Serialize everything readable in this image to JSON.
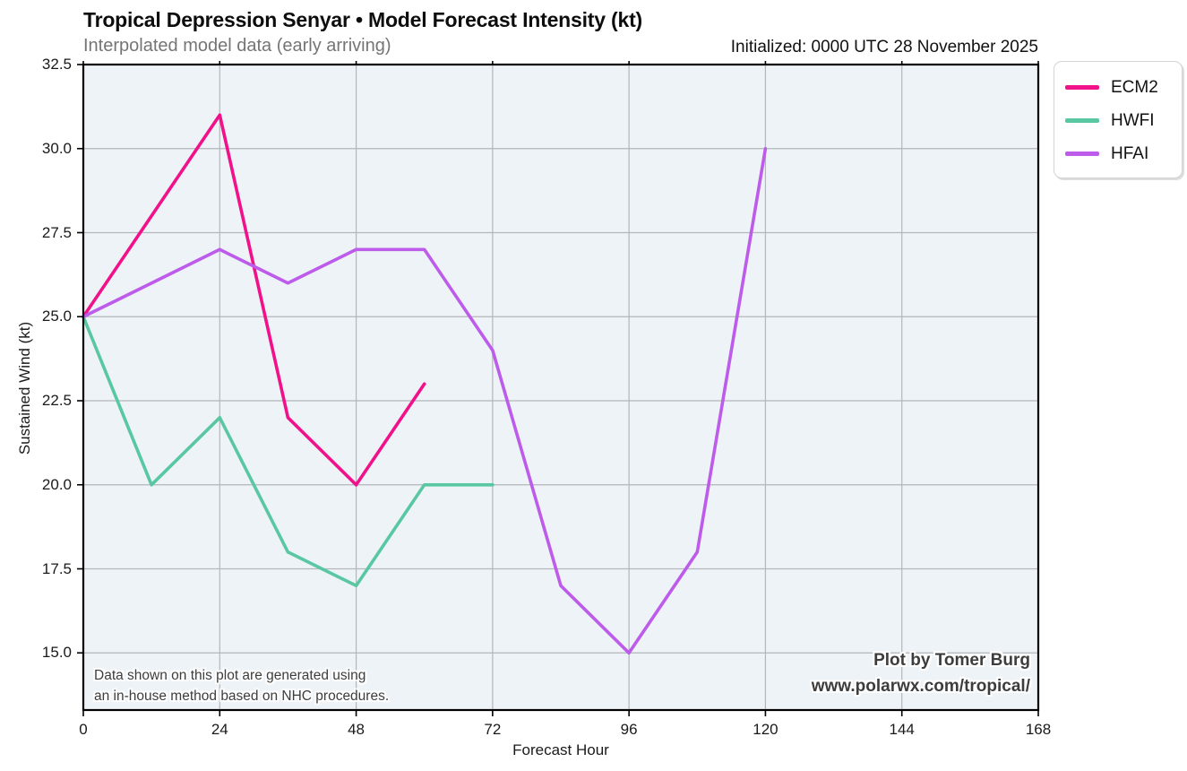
{
  "header": {
    "title": "Tropical Depression Senyar • Model Forecast Intensity (kt)",
    "subtitle": "Interpolated model data (early arriving)",
    "initialized": "Initialized: 0000 UTC 28 November 2025"
  },
  "chart_data": {
    "type": "line",
    "title": "Tropical Depression Senyar • Model Forecast Intensity (kt)",
    "subtitle": "Interpolated model data (early arriving)",
    "initialized": "Initialized: 0000 UTC 28 November 2025",
    "xlabel": "Forecast Hour",
    "ylabel": "Sustained Wind (kt)",
    "xlim": [
      0,
      168
    ],
    "ylim": [
      13.3,
      32.5
    ],
    "x_ticks": [
      0,
      24,
      48,
      72,
      96,
      120,
      144,
      168
    ],
    "x_tick_labels": [
      "0",
      "24",
      "48",
      "72",
      "96",
      "120",
      "144",
      "168"
    ],
    "y_ticks": [
      15.0,
      17.5,
      20.0,
      22.5,
      25.0,
      27.5,
      30.0,
      32.5
    ],
    "y_tick_labels": [
      "15.0",
      "17.5",
      "20.0",
      "22.5",
      "25.0",
      "27.5",
      "30.0",
      "32.5"
    ],
    "grid": true,
    "legend_position": "upper-right-outside",
    "plot_bg_color": "#eef3f8",
    "grid_color": "#b3b6ba",
    "frame_color": "#000000",
    "series": [
      {
        "name": "ECM2",
        "color": "#f1128b",
        "hours": [
          0,
          24,
          36,
          48,
          60
        ],
        "values": [
          25,
          31,
          22,
          20,
          23
        ]
      },
      {
        "name": "HWFI",
        "color": "#58c7a2",
        "hours": [
          0,
          12,
          24,
          36,
          48,
          60,
          72
        ],
        "values": [
          25,
          20,
          22,
          18,
          17,
          20,
          20
        ]
      },
      {
        "name": "HFAI",
        "color": "#bd5cea",
        "hours": [
          0,
          24,
          36,
          48,
          60,
          72,
          84,
          96,
          108,
          120
        ],
        "values": [
          25,
          27,
          26,
          27,
          27,
          24,
          17,
          15,
          18,
          30
        ]
      }
    ]
  },
  "annotation": {
    "line1": "Data shown on this plot are generated using",
    "line2": "an in-house method based on NHC procedures."
  },
  "credit": {
    "line1": "Plot by Tomer Burg",
    "line2": "www.polarwx.com/tropical/"
  }
}
